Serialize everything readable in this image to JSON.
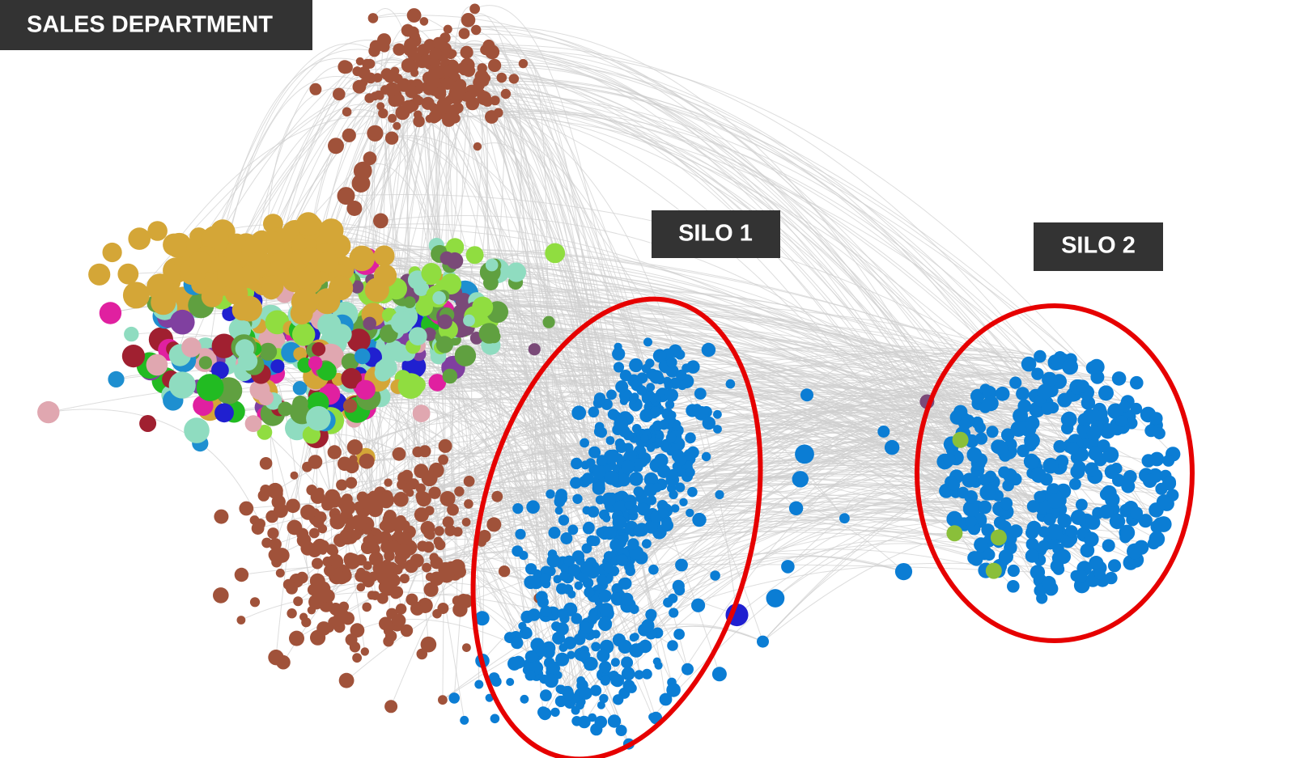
{
  "labels": {
    "sales": "SALES DEPARTMENT",
    "silo1": "SILO 1",
    "silo2": "SILO 2"
  }
}
